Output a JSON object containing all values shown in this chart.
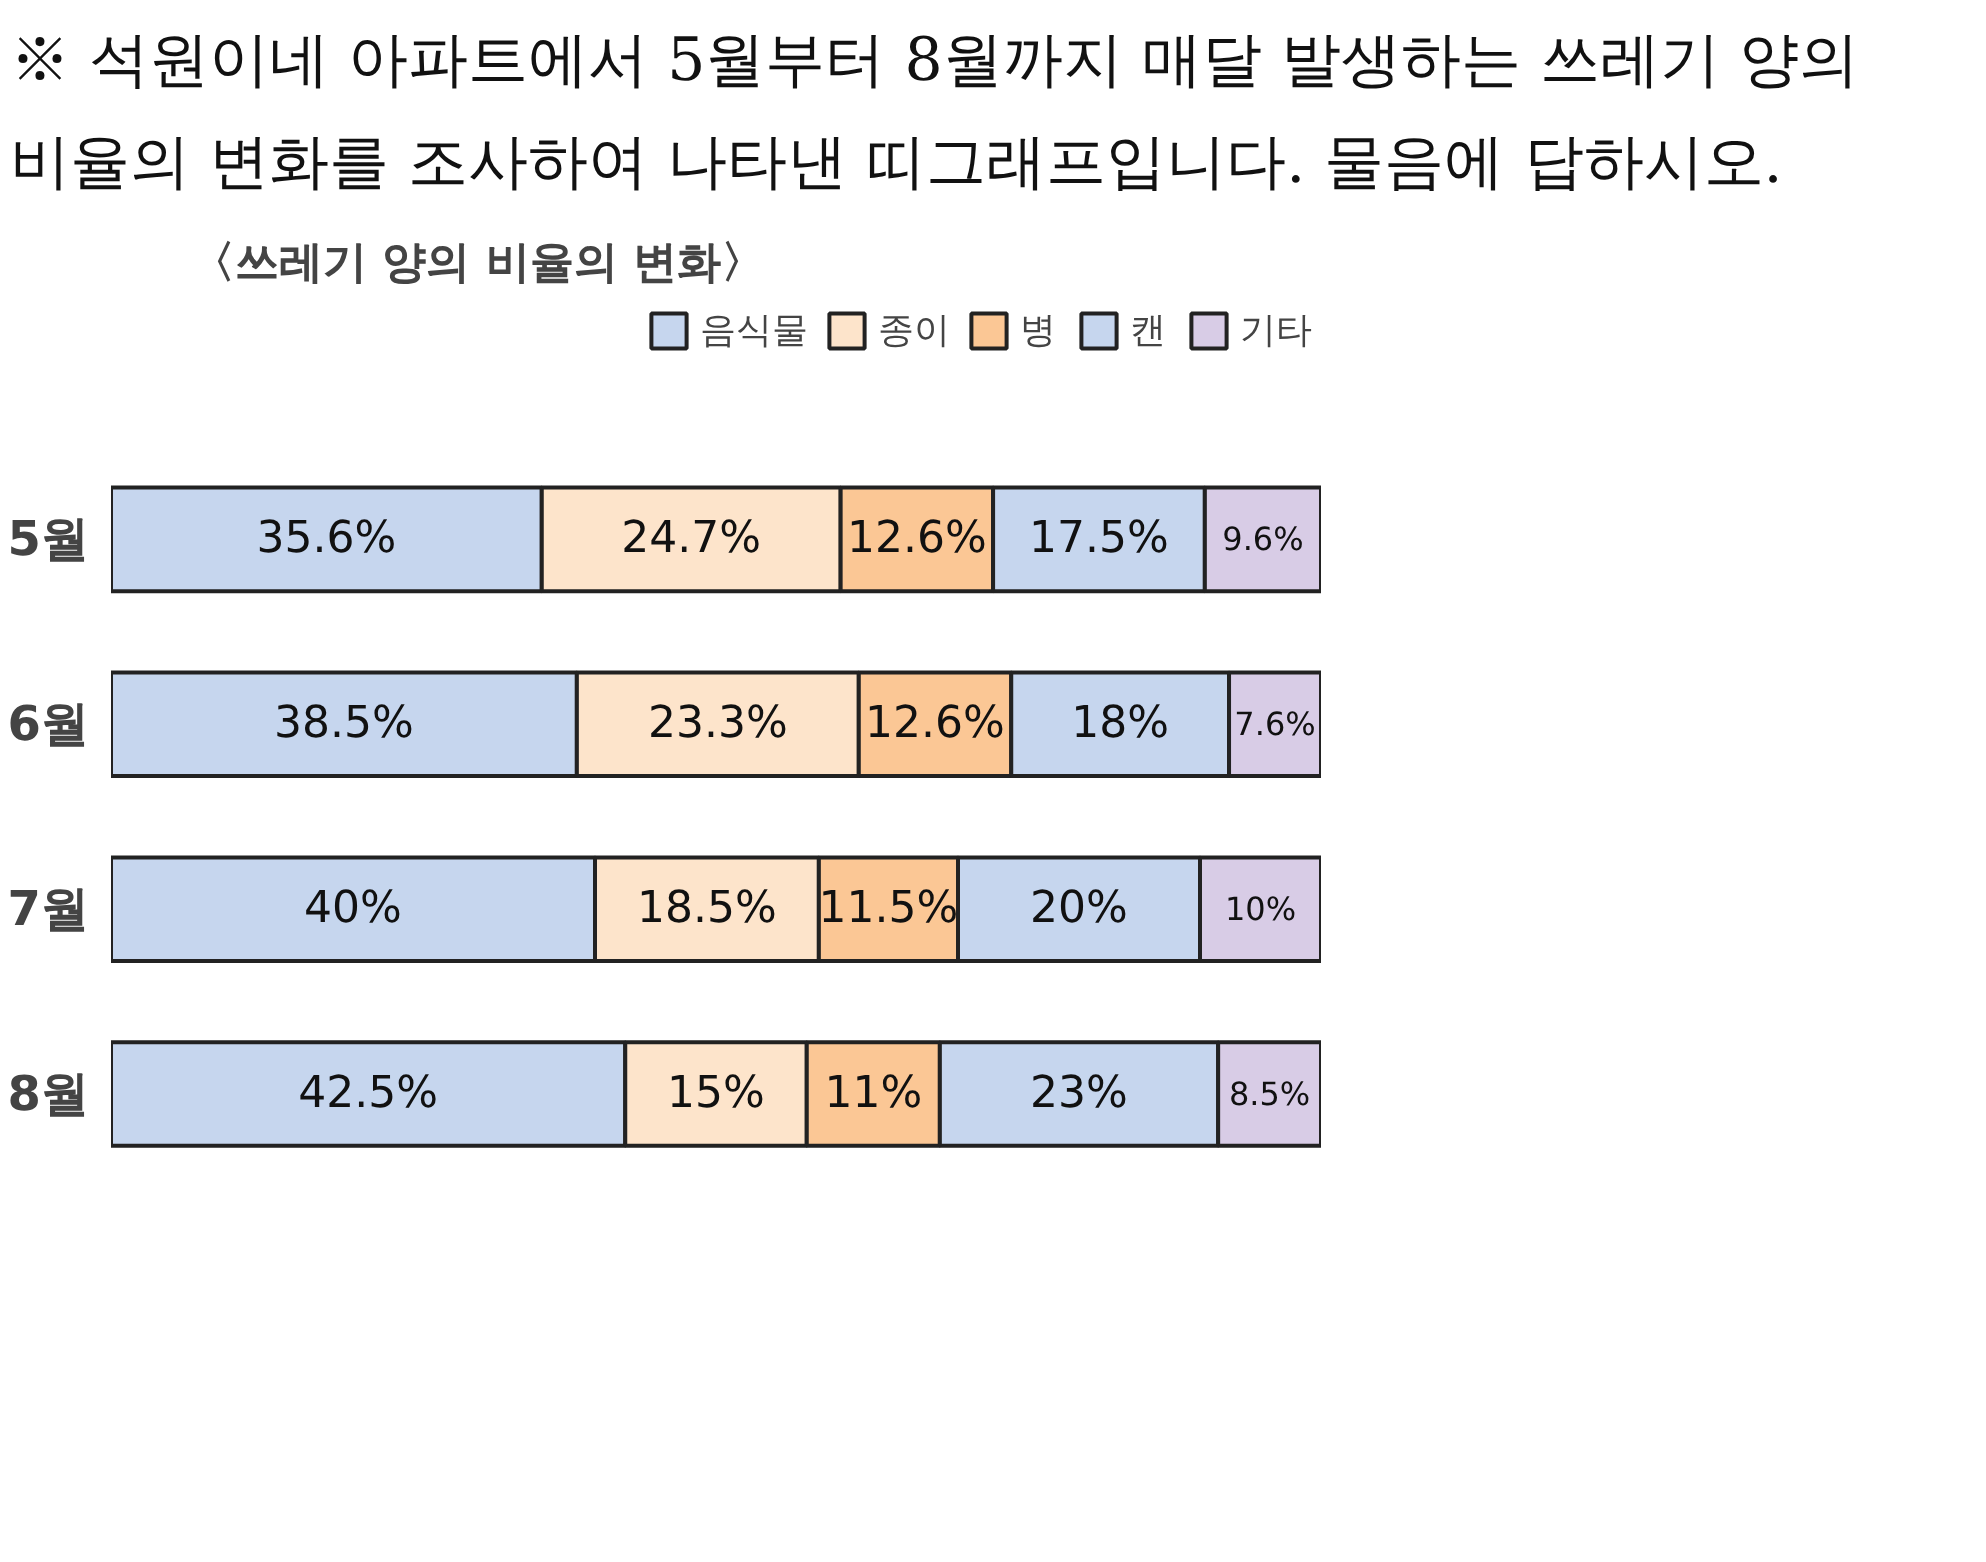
{
  "chart_data": {
    "type": "bar",
    "orientation": "horizontal",
    "stacked": true,
    "title": "※ 석원이네 아파트에서 5월부터 8월까지 매달 발생하는 쓰레기 양의 비율의 변화를 조사하여 나타낸 띠그래프입니다. 물음에 답하시오.",
    "subtitle": "〈쓰레기 양의 비율의 변화〉",
    "categories": [
      "5월",
      "6월",
      "7월",
      "8월"
    ],
    "legend": "top right",
    "series": [
      {
        "name": "음식물",
        "color": "#c6d6ee",
        "values": [
          35.6,
          38.5,
          40,
          42.5
        ],
        "value_labels": [
          "35.6%",
          "38.5%",
          "40%",
          "42.5%"
        ]
      },
      {
        "name": "종이",
        "color": "#fde4cb",
        "values": [
          24.7,
          23.3,
          18.5,
          15
        ],
        "value_labels": [
          "24.7%",
          "23.3%",
          "18.5%",
          "15%"
        ]
      },
      {
        "name": "병",
        "color": "#fbc795",
        "values": [
          12.6,
          12.6,
          11.5,
          11
        ],
        "value_labels": [
          "12.6%",
          "12.6%",
          "11.5%",
          "11%"
        ]
      },
      {
        "name": "캔",
        "color": "#c6d6ee",
        "values": [
          17.5,
          18,
          20,
          23
        ],
        "value_labels": [
          "17.5%",
          "18%",
          "20%",
          "23%"
        ]
      },
      {
        "name": "기타",
        "color": "#d8cce6",
        "values": [
          9.6,
          7.6,
          10,
          8.5
        ],
        "value_labels": [
          "9.6%",
          "7.6%",
          "10%",
          "8.5%"
        ]
      }
    ]
  }
}
